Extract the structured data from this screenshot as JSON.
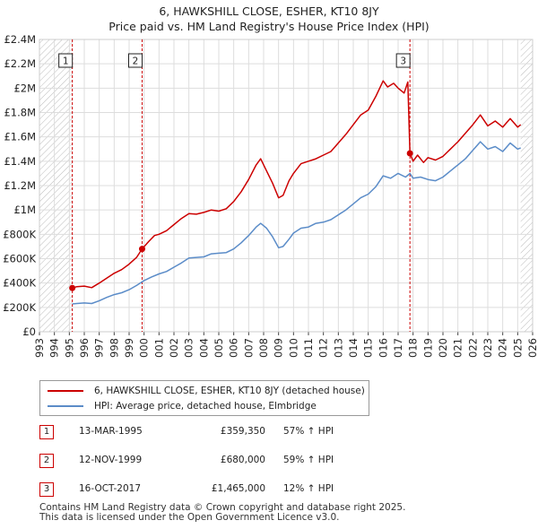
{
  "chart_data": {
    "type": "line",
    "title": "6, HAWKSHILL CLOSE, ESHER, KT10 8JY",
    "subtitle": "Price paid vs. HM Land Registry's House Price Index (HPI)",
    "xlabel": "",
    "ylabel": "",
    "xlim": [
      1993,
      2026
    ],
    "ylim": [
      0,
      2400000
    ],
    "x_ticks": [
      "1993",
      "1994",
      "1995",
      "1996",
      "1997",
      "1998",
      "1999",
      "2000",
      "2001",
      "2002",
      "2003",
      "2004",
      "2005",
      "2006",
      "2007",
      "2008",
      "2009",
      "2010",
      "2011",
      "2012",
      "2013",
      "2014",
      "2015",
      "2016",
      "2017",
      "2018",
      "2019",
      "2020",
      "2021",
      "2022",
      "2023",
      "2024",
      "2025",
      "2026"
    ],
    "y_ticks": [
      {
        "value": 0,
        "label": "£0"
      },
      {
        "value": 200000,
        "label": "£200K"
      },
      {
        "value": 400000,
        "label": "£400K"
      },
      {
        "value": 600000,
        "label": "£600K"
      },
      {
        "value": 800000,
        "label": "£800K"
      },
      {
        "value": 1000000,
        "label": "£1M"
      },
      {
        "value": 1200000,
        "label": "£1.2M"
      },
      {
        "value": 1400000,
        "label": "£1.4M"
      },
      {
        "value": 1600000,
        "label": "£1.6M"
      },
      {
        "value": 1800000,
        "label": "£1.8M"
      },
      {
        "value": 2000000,
        "label": "£2M"
      },
      {
        "value": 2200000,
        "label": "£2.2M"
      },
      {
        "value": 2400000,
        "label": "£2.4M"
      }
    ],
    "grid": true,
    "hatched_regions": [
      [
        1993,
        1995.2
      ],
      [
        2025.2,
        2026
      ]
    ],
    "legend": "bottom-outside",
    "series": [
      {
        "name": "6, HAWKSHILL CLOSE, ESHER, KT10 8JY (detached house)",
        "color": "#cc0000",
        "points": [
          [
            1995.2,
            359350
          ],
          [
            1995.5,
            370000
          ],
          [
            1996.0,
            375000
          ],
          [
            1996.5,
            362000
          ],
          [
            1997.0,
            400000
          ],
          [
            1997.5,
            440000
          ],
          [
            1998.0,
            480000
          ],
          [
            1998.5,
            510000
          ],
          [
            1999.0,
            555000
          ],
          [
            1999.5,
            610000
          ],
          [
            1999.87,
            680000
          ],
          [
            2000.3,
            740000
          ],
          [
            2000.7,
            790000
          ],
          [
            2001.0,
            800000
          ],
          [
            2001.5,
            830000
          ],
          [
            2002.0,
            880000
          ],
          [
            2002.5,
            930000
          ],
          [
            2003.0,
            970000
          ],
          [
            2003.5,
            965000
          ],
          [
            2004.0,
            980000
          ],
          [
            2004.5,
            1000000
          ],
          [
            2005.0,
            990000
          ],
          [
            2005.5,
            1010000
          ],
          [
            2006.0,
            1070000
          ],
          [
            2006.5,
            1150000
          ],
          [
            2007.0,
            1250000
          ],
          [
            2007.5,
            1370000
          ],
          [
            2007.8,
            1420000
          ],
          [
            2008.2,
            1320000
          ],
          [
            2008.6,
            1220000
          ],
          [
            2009.0,
            1100000
          ],
          [
            2009.3,
            1120000
          ],
          [
            2009.7,
            1240000
          ],
          [
            2010.0,
            1300000
          ],
          [
            2010.5,
            1380000
          ],
          [
            2011.0,
            1400000
          ],
          [
            2011.5,
            1420000
          ],
          [
            2012.0,
            1450000
          ],
          [
            2012.5,
            1480000
          ],
          [
            2013.0,
            1550000
          ],
          [
            2013.5,
            1620000
          ],
          [
            2014.0,
            1700000
          ],
          [
            2014.5,
            1780000
          ],
          [
            2015.0,
            1820000
          ],
          [
            2015.5,
            1930000
          ],
          [
            2016.0,
            2060000
          ],
          [
            2016.3,
            2010000
          ],
          [
            2016.7,
            2040000
          ],
          [
            2017.0,
            2000000
          ],
          [
            2017.4,
            1960000
          ],
          [
            2017.65,
            2050000
          ],
          [
            2017.79,
            1465000
          ],
          [
            2018.0,
            1400000
          ],
          [
            2018.3,
            1450000
          ],
          [
            2018.7,
            1390000
          ],
          [
            2019.0,
            1430000
          ],
          [
            2019.5,
            1410000
          ],
          [
            2020.0,
            1440000
          ],
          [
            2020.5,
            1500000
          ],
          [
            2021.0,
            1560000
          ],
          [
            2021.5,
            1630000
          ],
          [
            2022.0,
            1700000
          ],
          [
            2022.5,
            1780000
          ],
          [
            2023.0,
            1690000
          ],
          [
            2023.5,
            1730000
          ],
          [
            2024.0,
            1680000
          ],
          [
            2024.5,
            1750000
          ],
          [
            2025.0,
            1680000
          ],
          [
            2025.2,
            1700000
          ]
        ]
      },
      {
        "name": "HPI: Average price, detached house, Elmbridge",
        "color": "#5b8cc8",
        "points": [
          [
            1995.2,
            228000
          ],
          [
            1995.5,
            232000
          ],
          [
            1996.0,
            236000
          ],
          [
            1996.5,
            232000
          ],
          [
            1997.0,
            255000
          ],
          [
            1997.5,
            282000
          ],
          [
            1998.0,
            305000
          ],
          [
            1998.5,
            320000
          ],
          [
            1999.0,
            345000
          ],
          [
            1999.5,
            380000
          ],
          [
            2000.0,
            420000
          ],
          [
            2000.5,
            450000
          ],
          [
            2001.0,
            475000
          ],
          [
            2001.5,
            495000
          ],
          [
            2002.0,
            530000
          ],
          [
            2002.5,
            565000
          ],
          [
            2003.0,
            605000
          ],
          [
            2003.5,
            610000
          ],
          [
            2004.0,
            615000
          ],
          [
            2004.5,
            640000
          ],
          [
            2005.0,
            645000
          ],
          [
            2005.5,
            650000
          ],
          [
            2006.0,
            680000
          ],
          [
            2006.5,
            730000
          ],
          [
            2007.0,
            790000
          ],
          [
            2007.5,
            860000
          ],
          [
            2007.8,
            890000
          ],
          [
            2008.2,
            850000
          ],
          [
            2008.6,
            780000
          ],
          [
            2009.0,
            690000
          ],
          [
            2009.3,
            700000
          ],
          [
            2009.7,
            760000
          ],
          [
            2010.0,
            810000
          ],
          [
            2010.5,
            850000
          ],
          [
            2011.0,
            860000
          ],
          [
            2011.5,
            890000
          ],
          [
            2012.0,
            900000
          ],
          [
            2012.5,
            920000
          ],
          [
            2013.0,
            960000
          ],
          [
            2013.5,
            1000000
          ],
          [
            2014.0,
            1050000
          ],
          [
            2014.5,
            1100000
          ],
          [
            2015.0,
            1130000
          ],
          [
            2015.5,
            1190000
          ],
          [
            2016.0,
            1280000
          ],
          [
            2016.5,
            1260000
          ],
          [
            2017.0,
            1300000
          ],
          [
            2017.5,
            1270000
          ],
          [
            2017.79,
            1300000
          ],
          [
            2018.0,
            1260000
          ],
          [
            2018.5,
            1270000
          ],
          [
            2019.0,
            1250000
          ],
          [
            2019.5,
            1240000
          ],
          [
            2020.0,
            1270000
          ],
          [
            2020.5,
            1320000
          ],
          [
            2021.0,
            1370000
          ],
          [
            2021.5,
            1420000
          ],
          [
            2022.0,
            1490000
          ],
          [
            2022.5,
            1560000
          ],
          [
            2023.0,
            1500000
          ],
          [
            2023.5,
            1520000
          ],
          [
            2024.0,
            1480000
          ],
          [
            2024.5,
            1550000
          ],
          [
            2025.0,
            1500000
          ],
          [
            2025.2,
            1510000
          ]
        ]
      }
    ],
    "annotations": [
      {
        "label": "1",
        "x": 1995.2,
        "y": 359350
      },
      {
        "label": "2",
        "x": 1999.87,
        "y": 680000
      },
      {
        "label": "3",
        "x": 2017.79,
        "y": 1465000
      }
    ]
  },
  "legend": {
    "property_label": "6, HAWKSHILL CLOSE, ESHER, KT10 8JY (detached house)",
    "hpi_label": "HPI: Average price, detached house, Elmbridge"
  },
  "sales": [
    {
      "num": "1",
      "date": "13-MAR-1995",
      "price": "£359,350",
      "hpi": "57% ↑ HPI"
    },
    {
      "num": "2",
      "date": "12-NOV-1999",
      "price": "£680,000",
      "hpi": "59% ↑ HPI"
    },
    {
      "num": "3",
      "date": "16-OCT-2017",
      "price": "£1,465,000",
      "hpi": "12% ↑ HPI"
    }
  ],
  "footer": {
    "line1": "Contains HM Land Registry data © Crown copyright and database right 2025.",
    "line2": "This data is licensed under the Open Government Licence v3.0."
  },
  "colors": {
    "property": "#cc0000",
    "hpi": "#5b8cc8",
    "grid": "#dddddd",
    "sale_line": "#cc0000"
  }
}
